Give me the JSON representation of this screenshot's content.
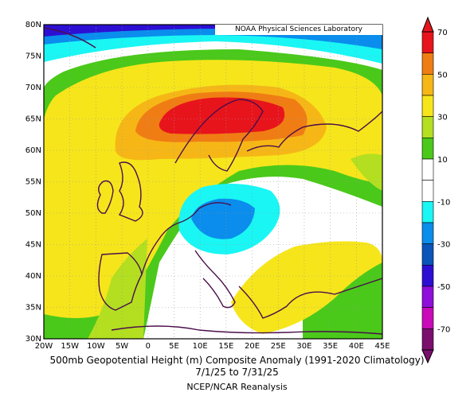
{
  "credit": "NOAA Physical Sciences Laboratory",
  "caption": {
    "line1": "500mb Geopotential Height (m) Composite Anomaly (1991-2020 Climatology)",
    "line2": "7/1/25 to 7/31/25",
    "line3": "NCEP/NCAR Reanalysis"
  },
  "map": {
    "lon_range": [
      -20,
      45
    ],
    "lat_range": [
      30,
      80
    ],
    "lon_tick_labels": [
      "20W",
      "15W",
      "10W",
      "5W",
      "0",
      "5E",
      "10E",
      "15E",
      "20E",
      "25E",
      "30E",
      "35E",
      "40E",
      "45E"
    ],
    "lat_tick_labels": [
      "30N",
      "35N",
      "40N",
      "45N",
      "50N",
      "55N",
      "60N",
      "65N",
      "70N",
      "75N",
      "80N"
    ],
    "grid": true
  },
  "colorbar": {
    "labels": [
      "70",
      "50",
      "30",
      "10",
      "-10",
      "-30",
      "-50",
      "-70"
    ],
    "colors": [
      "#e8141b",
      "#f07d14",
      "#f6b716",
      "#f6e51b",
      "#b3df20",
      "#4ac91a",
      "#ffffff",
      "#ffffff",
      "#1af6f4",
      "#0a8dec",
      "#0a55b9",
      "#2d0fd4",
      "#8f0ed9",
      "#c80ab9",
      "#7a0f6e"
    ]
  }
}
